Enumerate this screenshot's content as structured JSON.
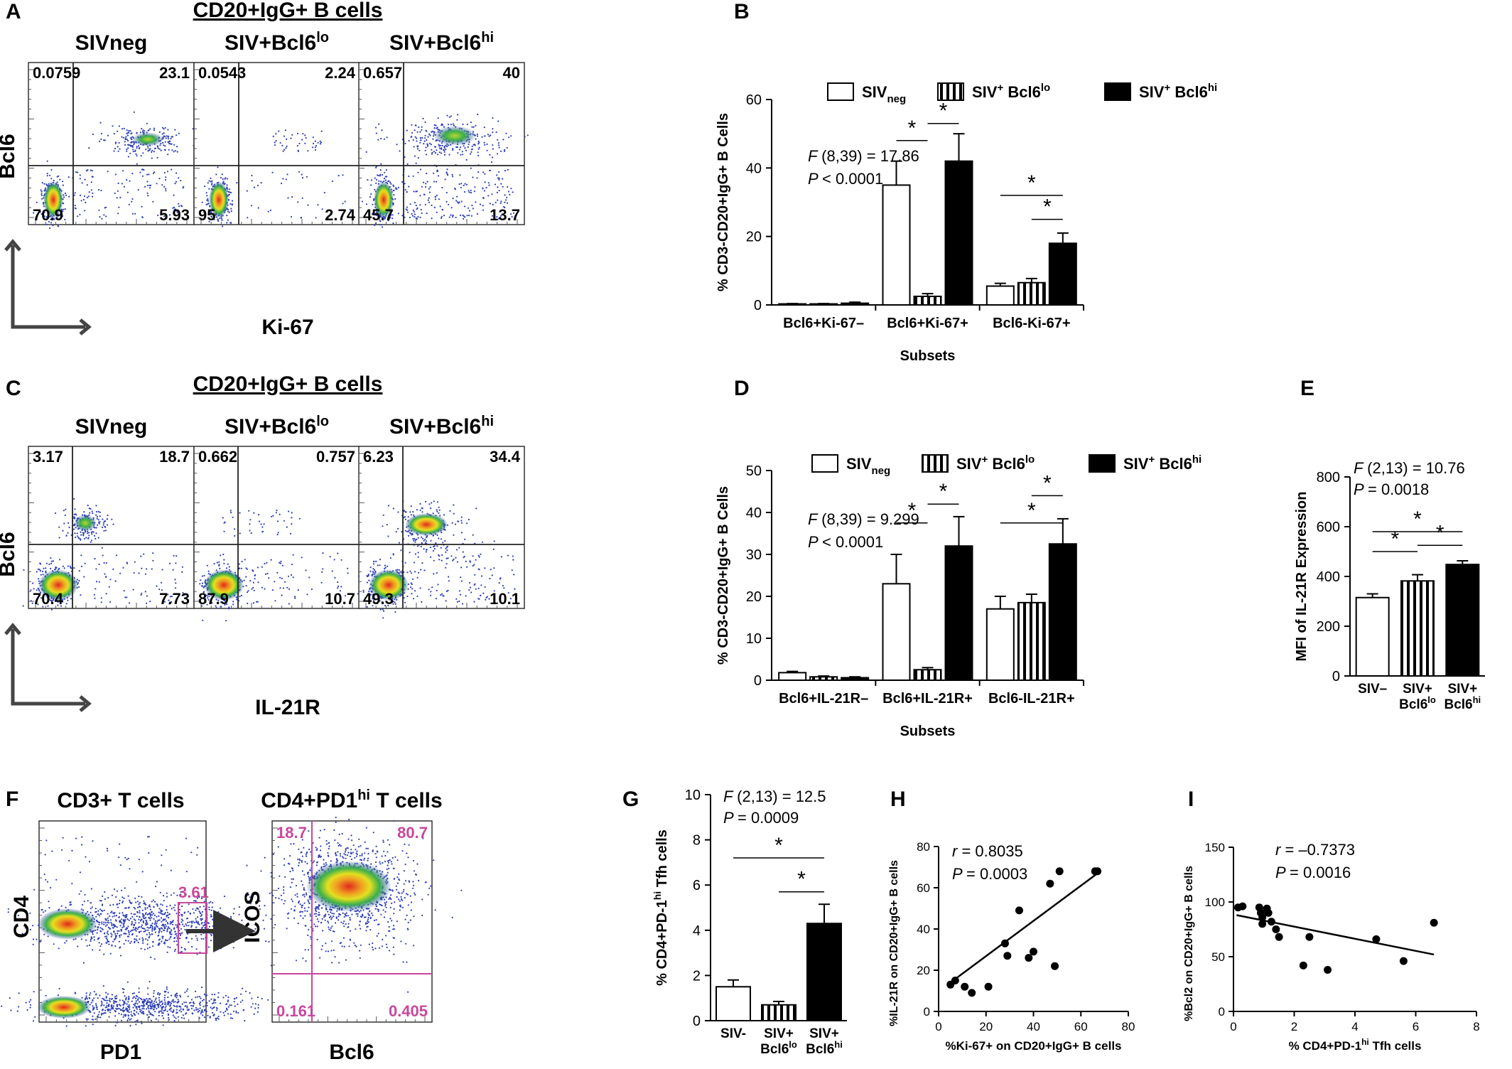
{
  "figure": {
    "panels": {
      "A": {
        "letter": "A",
        "title": "CD20+IgG+ B cells",
        "ylabel": "Bcl6",
        "xlabel": "Ki-67",
        "plots": [
          {
            "label": "SIVneg",
            "label_base": "SIVneg",
            "label_sup": "",
            "q_ul": "0.0759",
            "q_ur": "23.1",
            "q_ll": "70.9",
            "q_lr": "5.93"
          },
          {
            "label": "SIV+Bcl6lo",
            "label_base": "SIV+Bcl6",
            "label_sup": "lo",
            "q_ul": "0.0543",
            "q_ur": "2.24",
            "q_ll": "95",
            "q_lr": "2.74"
          },
          {
            "label": "SIV+Bcl6hi",
            "label_base": "SIV+Bcl6",
            "label_sup": "hi",
            "q_ul": "0.657",
            "q_ur": "40",
            "q_ll": "45.7",
            "q_lr": "13.7"
          }
        ]
      },
      "C": {
        "letter": "C",
        "title": "CD20+IgG+ B cells",
        "ylabel": "Bcl6",
        "xlabel": "IL-21R",
        "plots": [
          {
            "label": "SIVneg",
            "label_base": "SIVneg",
            "label_sup": "",
            "q_ul": "3.17",
            "q_ur": "18.7",
            "q_ll": "70.4",
            "q_lr": "7.73"
          },
          {
            "label": "SIV+Bcl6lo",
            "label_base": "SIV+Bcl6",
            "label_sup": "lo",
            "q_ul": "0.662",
            "q_ur": "0.757",
            "q_ll": "87.9",
            "q_lr": "10.7"
          },
          {
            "label": "SIV+Bcl6hi",
            "label_base": "SIV+Bcl6",
            "label_sup": "hi",
            "q_ul": "6.23",
            "q_ur": "34.4",
            "q_ll": "49.3",
            "q_lr": "10.1"
          }
        ]
      },
      "F": {
        "letter": "F",
        "plot1_title": "CD3+ T cells",
        "plot1_xlabel": "PD1",
        "plot1_ylabel": "CD4",
        "gate_value": "3.61",
        "plot2_title_base": "CD4+PD1",
        "plot2_title_sup": "hi",
        "plot2_title_end": " T cells",
        "plot2_xlabel": "Bcl6",
        "plot2_ylabel": "ICOS",
        "q_ul": "18.7",
        "q_ur": "80.7",
        "q_ll": "0.161",
        "q_lr": "0.405"
      }
    },
    "legend": {
      "neg_base": "SIV",
      "neg_sub": "neg",
      "lo_base": "SIV",
      "lo_sup": "+",
      "lo_mid": " Bcl6",
      "lo_sup2": "lo",
      "hi_base": "SIV",
      "hi_sup": "+",
      "hi_mid": " Bcl6",
      "hi_sup2": "hi"
    },
    "colors": {
      "open_bar": "#ffffff",
      "solid_bar": "#000000",
      "gate_line": "#c8479c",
      "gate_text": "#c8479c",
      "dot_blue": "#2d3fb5",
      "dot_green": "#3cb04a",
      "dot_yellow": "#e3e020",
      "dot_red": "#e02820"
    },
    "significance_symbol": "*"
  },
  "chart_data": [
    {
      "id": "B",
      "letter": "B",
      "type": "bar",
      "ylabel": "% CD3-CD20+IgG+ B Cells",
      "xlabel": "Subsets",
      "ylim": [
        0,
        60
      ],
      "yticks": [
        0,
        20,
        40,
        60
      ],
      "categories": [
        "Bcl6+Ki-67–",
        "Bcl6+Ki-67+",
        "Bcl6-Ki-67+"
      ],
      "series": [
        {
          "name": "SIVneg",
          "style": "open",
          "values": [
            0.3,
            35,
            5.5
          ],
          "errors": [
            0.1,
            7,
            0.8
          ]
        },
        {
          "name": "SIV+ Bcl6lo",
          "style": "striped",
          "values": [
            0.3,
            2.5,
            6.5
          ],
          "errors": [
            0.1,
            0.8,
            1.2
          ]
        },
        {
          "name": "SIV+ Bcl6hi",
          "style": "solid",
          "values": [
            0.5,
            42,
            18
          ],
          "errors": [
            0.3,
            8,
            3
          ]
        }
      ],
      "stat_f": "(8,39) = 17.86",
      "stat_p": "< 0.0001"
    },
    {
      "id": "D",
      "letter": "D",
      "type": "bar",
      "ylabel": "% CD3-CD20+IgG+ B Cells",
      "xlabel": "Subsets",
      "ylim": [
        0,
        50
      ],
      "yticks": [
        0,
        10,
        20,
        30,
        40,
        50
      ],
      "categories": [
        "Bcl6+IL-21R–",
        "Bcl6+IL-21R+",
        "Bcl6-IL-21R+"
      ],
      "series": [
        {
          "name": "SIVneg",
          "style": "open",
          "values": [
            1.8,
            23,
            17
          ],
          "errors": [
            0.3,
            7,
            3
          ]
        },
        {
          "name": "SIV+ Bcl6lo",
          "style": "striped",
          "values": [
            0.8,
            2.5,
            18.5
          ],
          "errors": [
            0.2,
            0.5,
            2
          ]
        },
        {
          "name": "SIV+ Bcl6hi",
          "style": "solid",
          "values": [
            0.6,
            32,
            32.5
          ],
          "errors": [
            0.2,
            7,
            6
          ]
        }
      ],
      "stat_f": "(8,39) = 9.299",
      "stat_p": "< 0.0001"
    },
    {
      "id": "E",
      "letter": "E",
      "type": "bar",
      "ylabel": "MFI of IL-21R Expression",
      "ylim": [
        0,
        800
      ],
      "yticks": [
        0,
        200,
        400,
        600,
        800
      ],
      "categories": [
        "SIV–",
        "SIV+ Bcl6lo",
        "SIV+ Bcl6hi"
      ],
      "tick_lines": [
        [
          "SIV–",
          "",
          ""
        ],
        [
          "SIV+",
          "Bcl6",
          "lo"
        ],
        [
          "SIV+",
          "Bcl6",
          "hi"
        ]
      ],
      "series": [
        {
          "name": "",
          "values": [
            315,
            382,
            448
          ],
          "errors": [
            15,
            25,
            15
          ],
          "styles": [
            "open",
            "striped",
            "solid"
          ]
        }
      ],
      "stat_f": "(2,13) = 10.76",
      "stat_p": "= 0.0018"
    },
    {
      "id": "G",
      "letter": "G",
      "type": "bar",
      "ylabel_base": "% CD4+PD-1",
      "ylabel_sup": "hi",
      "ylabel_end": " Tfh cells",
      "ylim": [
        0,
        10
      ],
      "yticks": [
        0,
        2,
        4,
        6,
        8,
        10
      ],
      "categories": [
        "SIV-",
        "SIV+ Bcl6lo",
        "SIV+ Bcl6hi"
      ],
      "tick_lines": [
        [
          "SIV-",
          "",
          ""
        ],
        [
          "SIV+",
          "Bcl6",
          "lo"
        ],
        [
          "SIV+",
          "Bcl6",
          "hi"
        ]
      ],
      "series": [
        {
          "name": "",
          "values": [
            1.5,
            0.7,
            4.3
          ],
          "errors": [
            0.3,
            0.15,
            0.85
          ],
          "styles": [
            "open",
            "striped",
            "solid"
          ]
        }
      ],
      "stat_f": "(2,13) = 12.5",
      "stat_p": "= 0.0009"
    },
    {
      "id": "H",
      "letter": "H",
      "type": "scatter",
      "xlabel": "%Ki-67+  on CD20+IgG+ B cells",
      "ylabel": "%IL-21R on CD20+IgG+ B cells",
      "xlim": [
        0,
        80
      ],
      "ylim": [
        0,
        80
      ],
      "xticks": [
        0,
        20,
        40,
        60,
        80
      ],
      "yticks": [
        0,
        20,
        40,
        60,
        80
      ],
      "points": [
        [
          5,
          13
        ],
        [
          7,
          15
        ],
        [
          11,
          12
        ],
        [
          14,
          9
        ],
        [
          21,
          12
        ],
        [
          28,
          33
        ],
        [
          29,
          27
        ],
        [
          34,
          49
        ],
        [
          38,
          26
        ],
        [
          40,
          29
        ],
        [
          47,
          62
        ],
        [
          49,
          22
        ],
        [
          51,
          68
        ],
        [
          66,
          68
        ],
        [
          67,
          68
        ]
      ],
      "fit": [
        [
          5,
          14
        ],
        [
          67,
          67
        ]
      ],
      "stat_r": "= 0.8035",
      "stat_p": "= 0.0003"
    },
    {
      "id": "I",
      "letter": "I",
      "type": "scatter",
      "xlabel_base": "% CD4+PD-1",
      "xlabel_sup": "hi",
      "xlabel_end": " Tfh cells",
      "ylabel": "%Bcl2 on CD20+IgG+ B cells",
      "xlim": [
        0,
        8
      ],
      "ylim": [
        0,
        150
      ],
      "xticks": [
        0,
        2,
        4,
        6,
        8
      ],
      "yticks": [
        0,
        50,
        100,
        150
      ],
      "points": [
        [
          0.15,
          95
        ],
        [
          0.3,
          96
        ],
        [
          0.85,
          95
        ],
        [
          0.9,
          90
        ],
        [
          0.95,
          86
        ],
        [
          0.95,
          80
        ],
        [
          1.1,
          94
        ],
        [
          1.15,
          90
        ],
        [
          1.25,
          82
        ],
        [
          1.4,
          75
        ],
        [
          1.5,
          68
        ],
        [
          2.3,
          42
        ],
        [
          2.5,
          68
        ],
        [
          3.1,
          38
        ],
        [
          4.7,
          66
        ],
        [
          5.6,
          46
        ],
        [
          6.6,
          81
        ]
      ],
      "fit": [
        [
          0.1,
          88
        ],
        [
          6.6,
          52
        ]
      ],
      "stat_r": "= –0.7373",
      "stat_p": "= 0.0016"
    }
  ]
}
